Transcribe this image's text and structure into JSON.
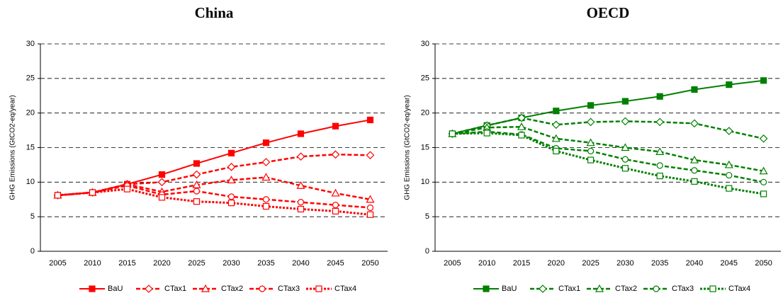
{
  "chart_data": [
    {
      "type": "line",
      "title": "China",
      "y_label": "GHG Emissions (GtCO2-eq/year)",
      "categories": [
        "2005",
        "2010",
        "2015",
        "2020",
        "2025",
        "2030",
        "2035",
        "2040",
        "2045",
        "2050"
      ],
      "ylim": [
        0,
        30
      ],
      "yticks": [
        0,
        5,
        10,
        15,
        20,
        25,
        30
      ],
      "grid": true,
      "legend": "bottom",
      "series": [
        {
          "name": "BaU",
          "color": "#ff0000",
          "marker": "square-filled",
          "line_style": "solid",
          "values": [
            8.1,
            8.5,
            9.7,
            11.1,
            12.7,
            14.2,
            15.7,
            17.0,
            18.1,
            19.0
          ]
        },
        {
          "name": "CTax1",
          "color": "#ff0000",
          "marker": "diamond",
          "line_style": "dashed",
          "values": [
            8.1,
            8.5,
            9.7,
            10.0,
            11.1,
            12.2,
            12.9,
            13.7,
            14.0,
            13.9
          ]
        },
        {
          "name": "CTax2",
          "color": "#ff0000",
          "marker": "triangle",
          "line_style": "dashed",
          "values": [
            8.1,
            8.5,
            9.7,
            8.6,
            9.6,
            10.3,
            10.7,
            9.5,
            8.4,
            7.5
          ]
        },
        {
          "name": "CTax3",
          "color": "#ff0000",
          "marker": "circle",
          "line_style": "dashed",
          "values": [
            8.1,
            8.5,
            9.5,
            8.2,
            8.7,
            7.9,
            7.5,
            7.1,
            6.7,
            6.3
          ]
        },
        {
          "name": "CTax4",
          "color": "#ff0000",
          "marker": "square",
          "line_style": "dotted",
          "values": [
            8.1,
            8.5,
            9.0,
            7.8,
            7.2,
            7.0,
            6.5,
            6.1,
            5.8,
            5.3
          ]
        }
      ]
    },
    {
      "type": "line",
      "title": "OECD",
      "y_label": "GHG Emissions (GtCO2-eq/year)",
      "categories": [
        "2005",
        "2010",
        "2015",
        "2020",
        "2025",
        "2030",
        "2035",
        "2040",
        "2045",
        "2050"
      ],
      "ylim": [
        0,
        30
      ],
      "yticks": [
        0,
        5,
        10,
        15,
        20,
        25,
        30
      ],
      "grid": true,
      "legend": "bottom",
      "series": [
        {
          "name": "BaU",
          "color": "#008000",
          "marker": "square-filled",
          "line_style": "solid",
          "values": [
            17.0,
            18.2,
            19.3,
            20.3,
            21.1,
            21.7,
            22.4,
            23.4,
            24.1,
            24.7
          ]
        },
        {
          "name": "CTax1",
          "color": "#008000",
          "marker": "diamond",
          "line_style": "dashed",
          "values": [
            17.0,
            18.2,
            19.3,
            18.3,
            18.7,
            18.8,
            18.7,
            18.5,
            17.4,
            16.3
          ]
        },
        {
          "name": "CTax2",
          "color": "#008000",
          "marker": "triangle",
          "line_style": "dashed",
          "values": [
            17.0,
            17.9,
            18.0,
            16.3,
            15.7,
            15.0,
            14.4,
            13.2,
            12.5,
            11.6
          ]
        },
        {
          "name": "CTax3",
          "color": "#008000",
          "marker": "circle",
          "line_style": "dashed",
          "values": [
            17.0,
            17.3,
            16.9,
            14.9,
            14.5,
            13.3,
            12.4,
            11.7,
            11.0,
            10.0
          ]
        },
        {
          "name": "CTax4",
          "color": "#008000",
          "marker": "square",
          "line_style": "dotted",
          "values": [
            17.0,
            17.1,
            16.8,
            14.5,
            13.2,
            12.0,
            10.9,
            10.1,
            9.1,
            8.3
          ]
        }
      ]
    }
  ]
}
